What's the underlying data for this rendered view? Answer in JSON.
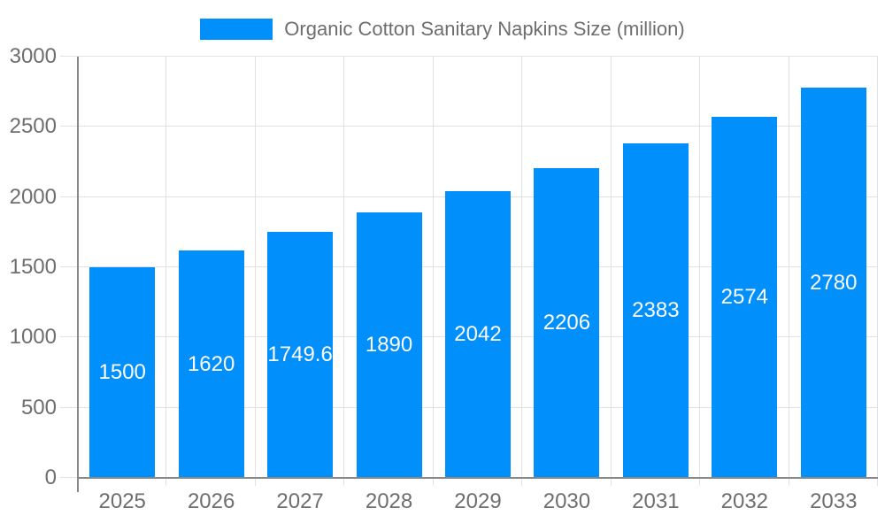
{
  "legend": {
    "series_label": "Organic Cotton Sanitary Napkins Size (million)"
  },
  "chart_data": {
    "type": "bar",
    "title": "Organic Cotton Sanitary Napkins Size (million)",
    "categories": [
      "2025",
      "2026",
      "2027",
      "2028",
      "2029",
      "2030",
      "2031",
      "2032",
      "2033"
    ],
    "values": [
      1500,
      1620,
      1749.6,
      1890,
      2042,
      2206,
      2383,
      2574,
      2780
    ],
    "value_labels": [
      "1500",
      "1620",
      "1749.6",
      "1890",
      "2042",
      "2206",
      "2383",
      "2574",
      "2780"
    ],
    "xlabel": "",
    "ylabel": "",
    "ylim": [
      0,
      3000
    ],
    "y_ticks": [
      0,
      500,
      1000,
      1500,
      2000,
      2500,
      3000
    ],
    "y_tick_labels": [
      "0",
      "500",
      "1000",
      "1500",
      "2000",
      "2500",
      "3000"
    ],
    "grid": "both",
    "legend_position": "top-center",
    "colors": {
      "bar": "#008ffb",
      "grid_line": "#e2e2e2",
      "axis_line": "#888888",
      "tick": "#e2e2e2",
      "axis_label": "#6e6e6e",
      "value_label": "#ffffff",
      "background": "#ffffff"
    }
  }
}
